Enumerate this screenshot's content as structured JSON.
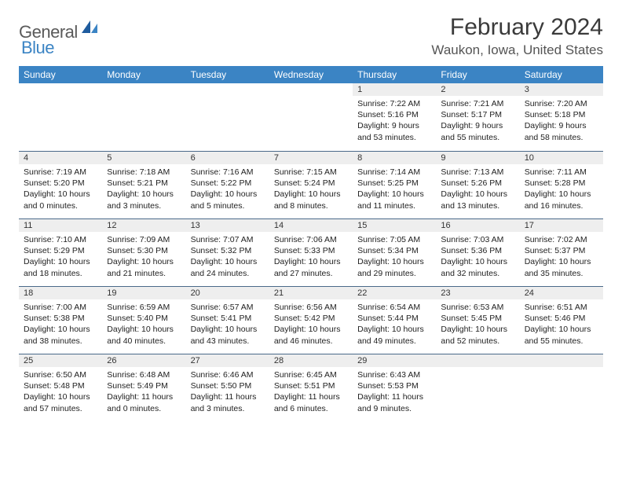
{
  "logo": {
    "text1": "General",
    "text2": "Blue"
  },
  "title": "February 2024",
  "location": "Waukon, Iowa, United States",
  "headers": [
    "Sunday",
    "Monday",
    "Tuesday",
    "Wednesday",
    "Thursday",
    "Friday",
    "Saturday"
  ],
  "colors": {
    "header_bg": "#3b84c4",
    "header_text": "#ffffff",
    "daynum_bg": "#eeeeee",
    "daynum_border": "#4a6a8a",
    "logo_gray": "#5a5a5a",
    "logo_blue": "#3b84c4",
    "text": "#222222"
  },
  "weeks": [
    [
      {
        "empty": true
      },
      {
        "empty": true
      },
      {
        "empty": true
      },
      {
        "empty": true
      },
      {
        "n": "1",
        "sr": "Sunrise: 7:22 AM",
        "ss": "Sunset: 5:16 PM",
        "dl": "Daylight: 9 hours and 53 minutes."
      },
      {
        "n": "2",
        "sr": "Sunrise: 7:21 AM",
        "ss": "Sunset: 5:17 PM",
        "dl": "Daylight: 9 hours and 55 minutes."
      },
      {
        "n": "3",
        "sr": "Sunrise: 7:20 AM",
        "ss": "Sunset: 5:18 PM",
        "dl": "Daylight: 9 hours and 58 minutes."
      }
    ],
    [
      {
        "n": "4",
        "sr": "Sunrise: 7:19 AM",
        "ss": "Sunset: 5:20 PM",
        "dl": "Daylight: 10 hours and 0 minutes."
      },
      {
        "n": "5",
        "sr": "Sunrise: 7:18 AM",
        "ss": "Sunset: 5:21 PM",
        "dl": "Daylight: 10 hours and 3 minutes."
      },
      {
        "n": "6",
        "sr": "Sunrise: 7:16 AM",
        "ss": "Sunset: 5:22 PM",
        "dl": "Daylight: 10 hours and 5 minutes."
      },
      {
        "n": "7",
        "sr": "Sunrise: 7:15 AM",
        "ss": "Sunset: 5:24 PM",
        "dl": "Daylight: 10 hours and 8 minutes."
      },
      {
        "n": "8",
        "sr": "Sunrise: 7:14 AM",
        "ss": "Sunset: 5:25 PM",
        "dl": "Daylight: 10 hours and 11 minutes."
      },
      {
        "n": "9",
        "sr": "Sunrise: 7:13 AM",
        "ss": "Sunset: 5:26 PM",
        "dl": "Daylight: 10 hours and 13 minutes."
      },
      {
        "n": "10",
        "sr": "Sunrise: 7:11 AM",
        "ss": "Sunset: 5:28 PM",
        "dl": "Daylight: 10 hours and 16 minutes."
      }
    ],
    [
      {
        "n": "11",
        "sr": "Sunrise: 7:10 AM",
        "ss": "Sunset: 5:29 PM",
        "dl": "Daylight: 10 hours and 18 minutes."
      },
      {
        "n": "12",
        "sr": "Sunrise: 7:09 AM",
        "ss": "Sunset: 5:30 PM",
        "dl": "Daylight: 10 hours and 21 minutes."
      },
      {
        "n": "13",
        "sr": "Sunrise: 7:07 AM",
        "ss": "Sunset: 5:32 PM",
        "dl": "Daylight: 10 hours and 24 minutes."
      },
      {
        "n": "14",
        "sr": "Sunrise: 7:06 AM",
        "ss": "Sunset: 5:33 PM",
        "dl": "Daylight: 10 hours and 27 minutes."
      },
      {
        "n": "15",
        "sr": "Sunrise: 7:05 AM",
        "ss": "Sunset: 5:34 PM",
        "dl": "Daylight: 10 hours and 29 minutes."
      },
      {
        "n": "16",
        "sr": "Sunrise: 7:03 AM",
        "ss": "Sunset: 5:36 PM",
        "dl": "Daylight: 10 hours and 32 minutes."
      },
      {
        "n": "17",
        "sr": "Sunrise: 7:02 AM",
        "ss": "Sunset: 5:37 PM",
        "dl": "Daylight: 10 hours and 35 minutes."
      }
    ],
    [
      {
        "n": "18",
        "sr": "Sunrise: 7:00 AM",
        "ss": "Sunset: 5:38 PM",
        "dl": "Daylight: 10 hours and 38 minutes."
      },
      {
        "n": "19",
        "sr": "Sunrise: 6:59 AM",
        "ss": "Sunset: 5:40 PM",
        "dl": "Daylight: 10 hours and 40 minutes."
      },
      {
        "n": "20",
        "sr": "Sunrise: 6:57 AM",
        "ss": "Sunset: 5:41 PM",
        "dl": "Daylight: 10 hours and 43 minutes."
      },
      {
        "n": "21",
        "sr": "Sunrise: 6:56 AM",
        "ss": "Sunset: 5:42 PM",
        "dl": "Daylight: 10 hours and 46 minutes."
      },
      {
        "n": "22",
        "sr": "Sunrise: 6:54 AM",
        "ss": "Sunset: 5:44 PM",
        "dl": "Daylight: 10 hours and 49 minutes."
      },
      {
        "n": "23",
        "sr": "Sunrise: 6:53 AM",
        "ss": "Sunset: 5:45 PM",
        "dl": "Daylight: 10 hours and 52 minutes."
      },
      {
        "n": "24",
        "sr": "Sunrise: 6:51 AM",
        "ss": "Sunset: 5:46 PM",
        "dl": "Daylight: 10 hours and 55 minutes."
      }
    ],
    [
      {
        "n": "25",
        "sr": "Sunrise: 6:50 AM",
        "ss": "Sunset: 5:48 PM",
        "dl": "Daylight: 10 hours and 57 minutes."
      },
      {
        "n": "26",
        "sr": "Sunrise: 6:48 AM",
        "ss": "Sunset: 5:49 PM",
        "dl": "Daylight: 11 hours and 0 minutes."
      },
      {
        "n": "27",
        "sr": "Sunrise: 6:46 AM",
        "ss": "Sunset: 5:50 PM",
        "dl": "Daylight: 11 hours and 3 minutes."
      },
      {
        "n": "28",
        "sr": "Sunrise: 6:45 AM",
        "ss": "Sunset: 5:51 PM",
        "dl": "Daylight: 11 hours and 6 minutes."
      },
      {
        "n": "29",
        "sr": "Sunrise: 6:43 AM",
        "ss": "Sunset: 5:53 PM",
        "dl": "Daylight: 11 hours and 9 minutes."
      },
      {
        "empty": true,
        "trailing": true
      },
      {
        "empty": true,
        "trailing": true
      }
    ]
  ]
}
